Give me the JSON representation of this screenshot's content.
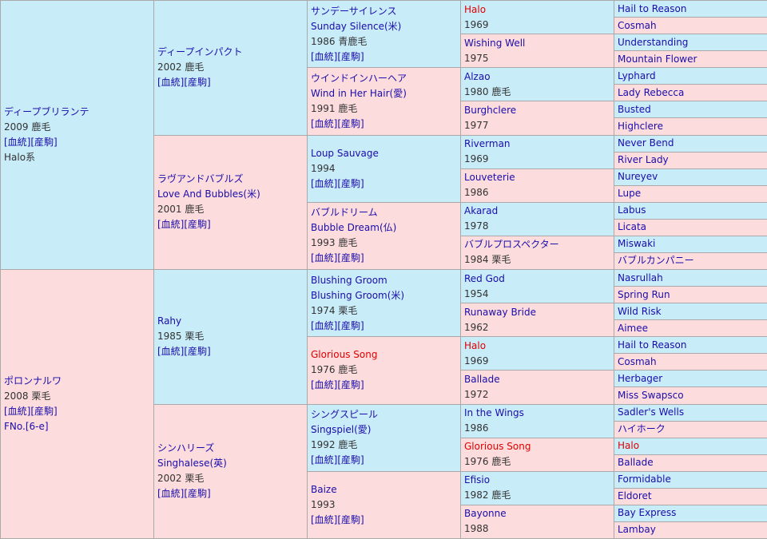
{
  "g1": [
    {
      "name": "ディープブリランテ",
      "meta": "2009 鹿毛",
      "links": "[血統][産駒]",
      "extra": "Halo系"
    },
    {
      "name": "ポロンナルワ",
      "meta": "2008 栗毛",
      "links": "[血統][産駒]",
      "extra": "FNo.[6-e]"
    }
  ],
  "g2": [
    {
      "name": "ディープインパクト",
      "meta": "2002 鹿毛",
      "links": "[血統][産駒]"
    },
    {
      "name": "ラヴアンドバブルズ",
      "sub": "Love And Bubbles(米)",
      "meta": "2001 鹿毛",
      "links": "[血統][産駒]"
    },
    {
      "name": "Rahy",
      "meta": "1985 栗毛",
      "links": "[血統][産駒]"
    },
    {
      "name": "シンハリーズ",
      "sub": "Singhalese(英)",
      "meta": "2002 栗毛",
      "links": "[血統][産駒]"
    }
  ],
  "g3": [
    {
      "name": "サンデーサイレンス",
      "sub": "Sunday Silence(米)",
      "meta": "1986 青鹿毛",
      "links": "[血統][産駒]"
    },
    {
      "name": "ウインドインハーヘア",
      "sub": "Wind in Her Hair(愛)",
      "meta": "1991 鹿毛",
      "links": "[血統][産駒]"
    },
    {
      "name": "Loup Sauvage",
      "meta": "1994",
      "links": "[血統][産駒]"
    },
    {
      "name": "バブルドリーム",
      "sub": "Bubble Dream(仏)",
      "meta": "1993 鹿毛",
      "links": "[血統][産駒]"
    },
    {
      "name": "Blushing Groom",
      "sub": "Blushing Groom(米)",
      "meta": "1974 栗毛",
      "links": "[血統][産駒]"
    },
    {
      "name": "Glorious Song",
      "meta": "1976 鹿毛",
      "links": "[血統][産駒]"
    },
    {
      "name": "シングスピール",
      "sub": "Singspiel(愛)",
      "meta": "1992 鹿毛",
      "links": "[血統][産駒]"
    },
    {
      "name": "Baize",
      "meta": "1993",
      "links": "[血統][産駒]"
    }
  ],
  "g4": [
    {
      "name": "Halo",
      "meta": "1969"
    },
    {
      "name": "Wishing Well",
      "meta": "1975"
    },
    {
      "name": "Alzao",
      "meta": "1980 鹿毛"
    },
    {
      "name": "Burghclere",
      "meta": "1977"
    },
    {
      "name": "Riverman",
      "meta": "1969"
    },
    {
      "name": "Louveterie",
      "meta": "1986"
    },
    {
      "name": "Akarad",
      "meta": "1978"
    },
    {
      "name": "バブルプロスペクター",
      "meta": "1984 栗毛"
    },
    {
      "name": "Red God",
      "meta": "1954"
    },
    {
      "name": "Runaway Bride",
      "meta": "1962"
    },
    {
      "name": "Halo",
      "meta": "1969"
    },
    {
      "name": "Ballade",
      "meta": "1972"
    },
    {
      "name": "In the Wings",
      "meta": "1986"
    },
    {
      "name": "Glorious Song",
      "meta": "1976 鹿毛"
    },
    {
      "name": "Efisio",
      "meta": "1982 鹿毛"
    },
    {
      "name": "Bayonne",
      "meta": "1988"
    }
  ],
  "g5": [
    "Hail to Reason",
    "Cosmah",
    "Understanding",
    "Mountain Flower",
    "Lyphard",
    "Lady Rebecca",
    "Busted",
    "Highclere",
    "Never Bend",
    "River Lady",
    "Nureyev",
    "Lupe",
    "Labus",
    "Licata",
    "Miswaki",
    "バブルカンパニー",
    "Nasrullah",
    "Spring Run",
    "Wild Risk",
    "Aimee",
    "Hail to Reason",
    "Cosmah",
    "Herbager",
    "Miss Swapsco",
    "Sadler's Wells",
    "ハイホーク",
    "Halo",
    "Ballade",
    "Formidable",
    "Eldoret",
    "Bay Express",
    "Lambay"
  ],
  "colors": {
    "male": "#c8ecf8",
    "female": "#fcdcdc",
    "link": "#1a0dab",
    "highlight": "#e00000"
  }
}
